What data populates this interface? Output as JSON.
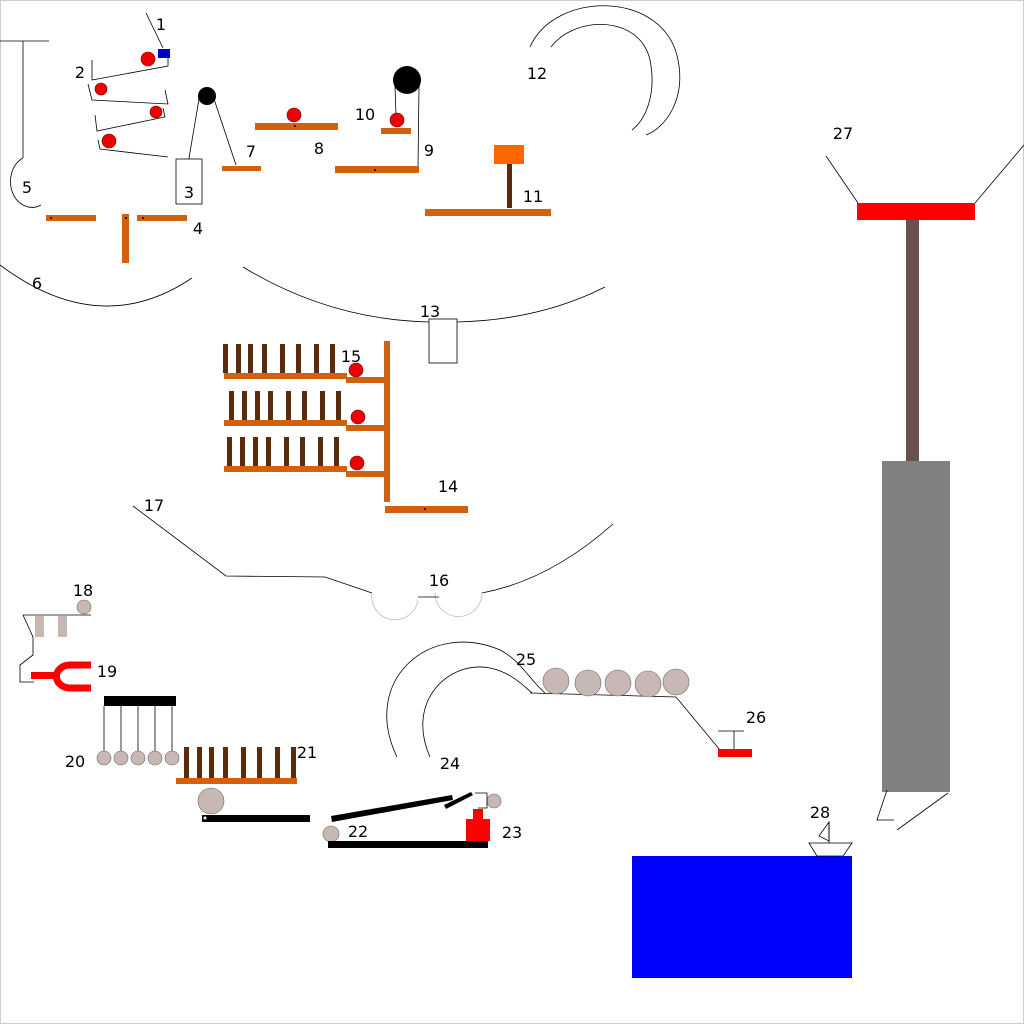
{
  "diagram": {
    "labels": [
      "1",
      "2",
      "3",
      "4",
      "5",
      "6",
      "7",
      "8",
      "9",
      "10",
      "11",
      "12",
      "13",
      "14",
      "15",
      "16",
      "17",
      "18",
      "19",
      "20",
      "21",
      "22",
      "23",
      "24",
      "25",
      "26",
      "27",
      "28"
    ]
  },
  "colors": {
    "plank": "#d2610f",
    "domino": "#5a2b0c",
    "ball": "#ee0000",
    "grey_ball": "#c7b8b3",
    "water": "#0000ff",
    "weight_orange": "#ff6600",
    "piston_body": "#808080",
    "piston_rod": "#6b5050",
    "piston_cap": "#ff0000",
    "switch_blue": "#0000cc"
  }
}
